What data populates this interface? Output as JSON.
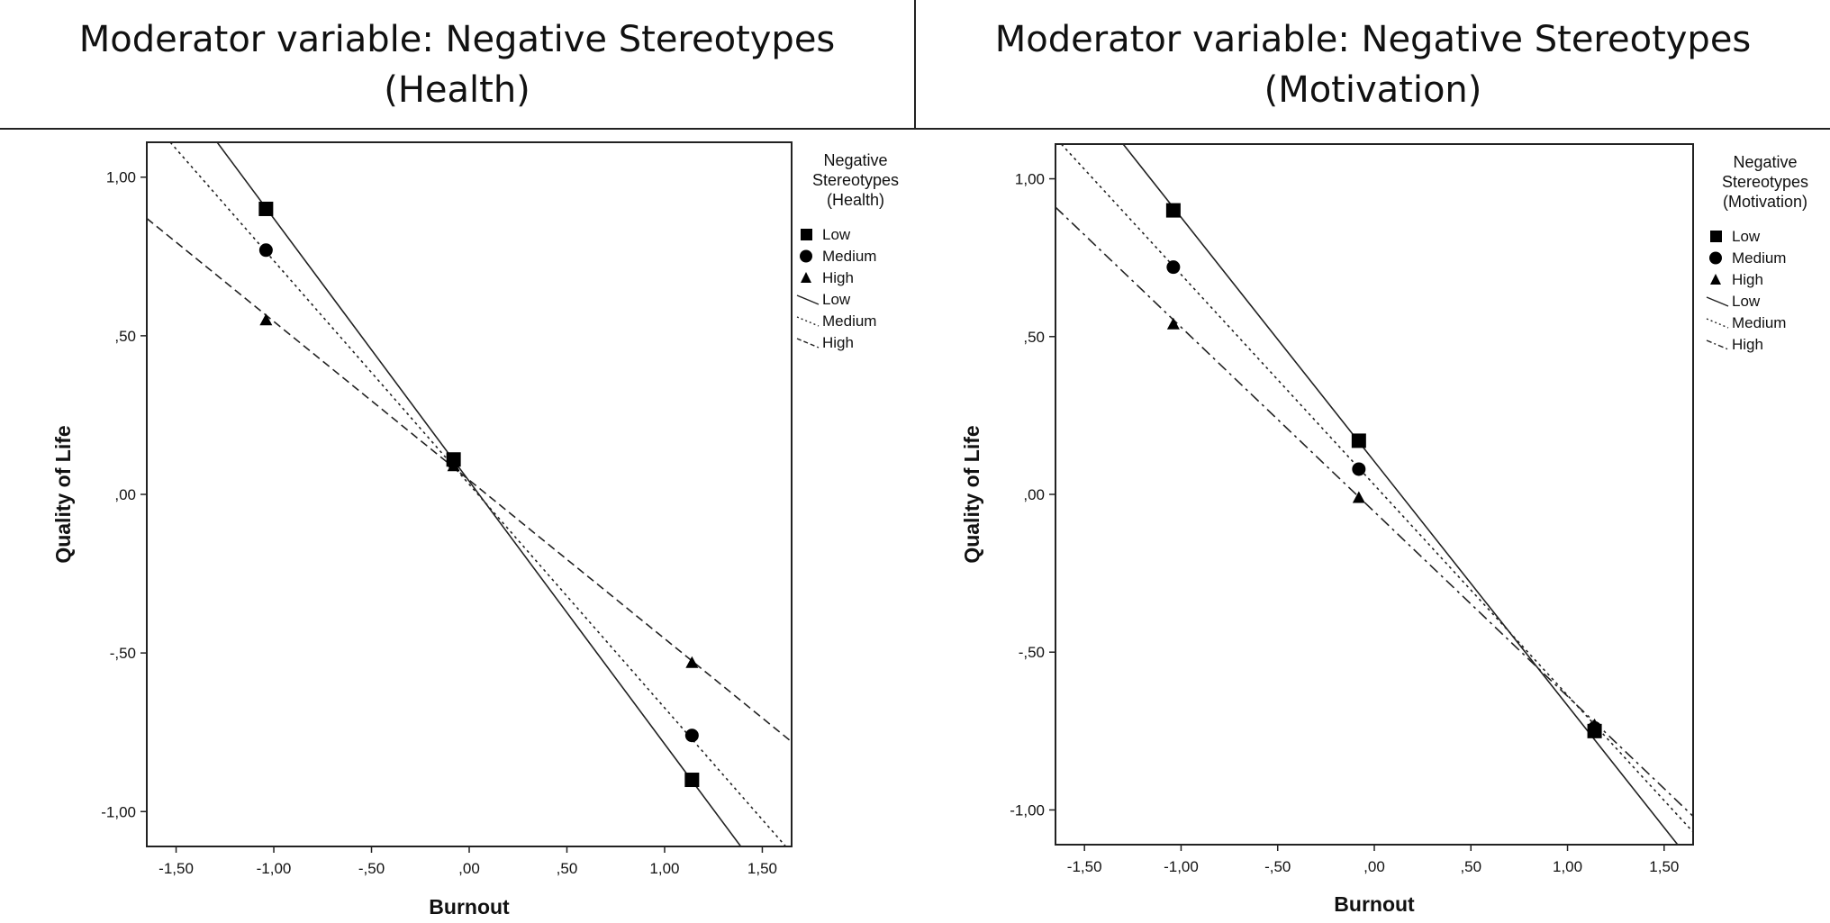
{
  "headers": [
    {
      "line1": "Moderator variable: Negative Stereotypes",
      "line2": "(Health)"
    },
    {
      "line1": "Moderator variable: Negative Stereotypes",
      "line2": "(Motivation)"
    }
  ],
  "chart_data": [
    {
      "type": "line",
      "title": "Moderator variable: Negative Stereotypes (Health)",
      "xlabel": "Burnout",
      "ylabel": "Quality of Life",
      "xlim": [
        -1.65,
        1.65
      ],
      "ylim": [
        -1.11,
        1.11
      ],
      "xticks": [
        -1.5,
        -1.0,
        -0.5,
        0.0,
        0.5,
        1.0,
        1.5
      ],
      "xtick_labels": [
        "-1,50",
        "-1,00",
        "-,50",
        ",00",
        ",50",
        "1,00",
        "1,50"
      ],
      "yticks": [
        -1.0,
        -0.5,
        0.0,
        0.5,
        1.0
      ],
      "ytick_labels": [
        "-1,00",
        "-,50",
        ",00",
        ",50",
        "1,00"
      ],
      "legend_title": [
        "Negative",
        "Stereotypes",
        "(Health)"
      ],
      "legend_markers": [
        "Low",
        "Medium",
        "High"
      ],
      "legend_lines": [
        "Low",
        "Medium",
        "High"
      ],
      "series": [
        {
          "name": "Low",
          "marker": "square",
          "dash": "solid",
          "points": {
            "x": [
              -1.04,
              -0.08,
              1.14
            ],
            "y": [
              0.9,
              0.11,
              -0.9
            ]
          },
          "line": {
            "x1": -1.29,
            "y1": 1.11,
            "x2": 1.39,
            "y2": -1.11
          }
        },
        {
          "name": "Medium",
          "marker": "circle",
          "dash": "dotted",
          "points": {
            "x": [
              -1.04,
              -0.08,
              1.14
            ],
            "y": [
              0.77,
              0.1,
              -0.76
            ]
          },
          "line": {
            "x1": -1.53,
            "y1": 1.11,
            "x2": 1.62,
            "y2": -1.11
          }
        },
        {
          "name": "High",
          "marker": "triangle",
          "dash": "dashed",
          "points": {
            "x": [
              -1.04,
              -0.08,
              1.14
            ],
            "y": [
              0.55,
              0.09,
              -0.53
            ]
          },
          "line": {
            "x1": -1.65,
            "y1": 0.87,
            "x2": 1.65,
            "y2": -0.78
          }
        }
      ]
    },
    {
      "type": "line",
      "title": "Moderator variable: Negative Stereotypes (Motivation)",
      "xlabel": "Burnout",
      "ylabel": "Quality of Life",
      "xlim": [
        -1.65,
        1.65
      ],
      "ylim": [
        -1.11,
        1.11
      ],
      "xticks": [
        -1.5,
        -1.0,
        -0.5,
        0.0,
        0.5,
        1.0,
        1.5
      ],
      "xtick_labels": [
        "-1,50",
        "-1,00",
        "-,50",
        ",00",
        ",50",
        "1,00",
        "1,50"
      ],
      "yticks": [
        -1.0,
        -0.5,
        0.0,
        0.5,
        1.0
      ],
      "ytick_labels": [
        "-1,00",
        "-,50",
        ",00",
        ",50",
        "1,00"
      ],
      "legend_title": [
        "Negative",
        "Stereotypes",
        "(Motivation)"
      ],
      "legend_markers": [
        "Low",
        "Medium",
        "High"
      ],
      "legend_lines": [
        "Low",
        "Medium",
        "High"
      ],
      "series": [
        {
          "name": "Low",
          "marker": "square",
          "dash": "solid",
          "points": {
            "x": [
              -1.04,
              -0.08,
              1.14
            ],
            "y": [
              0.9,
              0.17,
              -0.75
            ]
          },
          "line": {
            "x1": -1.3,
            "y1": 1.11,
            "x2": 1.57,
            "y2": -1.11
          }
        },
        {
          "name": "Medium",
          "marker": "circle",
          "dash": "dotted",
          "points": {
            "x": [
              -1.04,
              -0.08,
              1.14
            ],
            "y": [
              0.72,
              0.08,
              -0.74
            ]
          },
          "line": {
            "x1": -1.62,
            "y1": 1.11,
            "x2": 1.65,
            "y2": -1.07
          }
        },
        {
          "name": "High",
          "marker": "triangle",
          "dash": "dashdot",
          "points": {
            "x": [
              -1.04,
              -0.08,
              1.14
            ],
            "y": [
              0.54,
              -0.01,
              -0.73
            ]
          },
          "line": {
            "x1": -1.65,
            "y1": 0.91,
            "x2": 1.65,
            "y2": -1.02
          }
        }
      ]
    }
  ]
}
